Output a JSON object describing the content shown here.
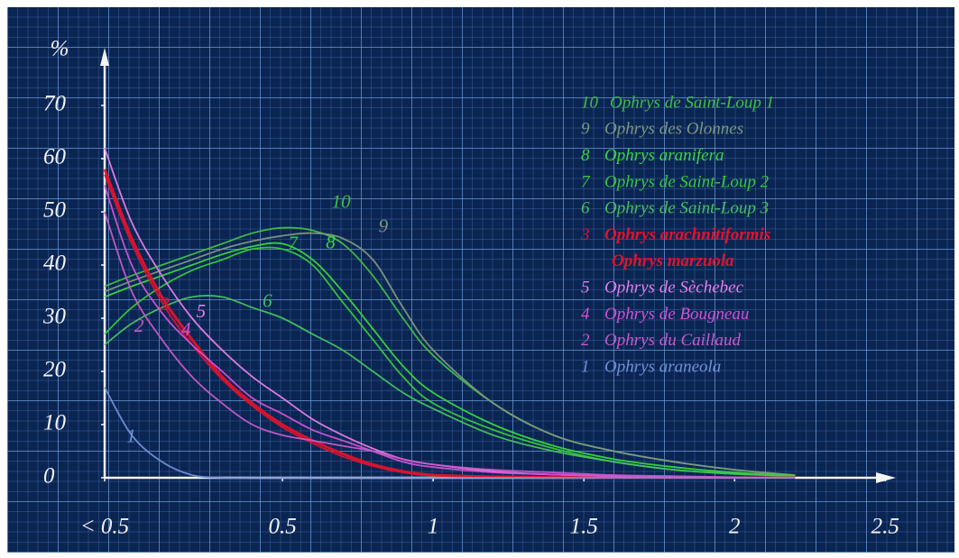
{
  "chart_data": {
    "type": "line",
    "y_label": "%",
    "x": [
      -0.09,
      0,
      0.1,
      0.2,
      0.3,
      0.4,
      0.5,
      0.6,
      0.7,
      0.8,
      0.9,
      1.0,
      1.2,
      1.4,
      1.6,
      1.8,
      2.0,
      2.2
    ],
    "xlim": [
      -0.09,
      2.55
    ],
    "xticks": [
      {
        "value": -0.09,
        "label": "< 0.5"
      },
      0.5,
      1,
      1.5,
      2,
      2.5
    ],
    "ylim": [
      0,
      80
    ],
    "yticks": [
      0,
      10,
      20,
      30,
      40,
      50,
      60,
      70
    ],
    "series": [
      {
        "label": "10",
        "name": "Ophrys de Saint-Loup 1",
        "color": "#3fbf46",
        "values": [
          36,
          38,
          40,
          42,
          44,
          46,
          47,
          46.5,
          44,
          38,
          30,
          23,
          14,
          8,
          5,
          3,
          1.5,
          0.5
        ]
      },
      {
        "label": "9",
        "name": "Ophrys des Olonnes",
        "color": "#7f967f",
        "values": [
          35,
          37,
          39,
          41,
          43,
          44.5,
          45.5,
          46,
          45,
          41,
          32,
          24,
          14,
          8,
          5,
          3,
          1.5,
          0.5
        ]
      },
      {
        "label": "8",
        "name": "Ophrys aranifera",
        "color": "#39d83c",
        "values": [
          34,
          36,
          38,
          40,
          42,
          43.5,
          44,
          41,
          35,
          28,
          21,
          16,
          10,
          6,
          3.5,
          2,
          1,
          0.4
        ]
      },
      {
        "label": "7",
        "name": "Ophrys de Saint-Loup 2",
        "color": "#36c93a",
        "values": [
          27,
          32,
          36,
          39,
          41,
          43,
          43,
          40,
          33,
          26,
          19,
          14,
          9,
          5.5,
          3,
          1.5,
          0.7,
          0.3
        ]
      },
      {
        "label": "6",
        "name": "Ophrys de Saint-Loup 3",
        "color": "#44c25c",
        "values": [
          25,
          29,
          32,
          34,
          34,
          32,
          30,
          27,
          24,
          20,
          16,
          13,
          8,
          5,
          3,
          1.5,
          0.8,
          0.3
        ]
      },
      {
        "label": "3",
        "name": "Ophrys arachnitiformis",
        "color": "#e2122c",
        "values": [
          58,
          45,
          34,
          26,
          19,
          14,
          10,
          7,
          4.5,
          2.5,
          1.2,
          0.5,
          0.2,
          0.1,
          0,
          0,
          0,
          0
        ]
      },
      {
        "name": "Ophrys marzuola",
        "color": "#e2122c",
        "values": [
          57,
          44,
          33,
          25,
          18.5,
          13.5,
          9.5,
          6.5,
          4,
          2.2,
          1,
          0.4,
          0.2,
          0.1,
          0,
          0,
          0,
          0
        ]
      },
      {
        "label": "5",
        "name": "Ophrys de Sèchebec",
        "color": "#e67ee6",
        "values": [
          62,
          48,
          38,
          30,
          24,
          19,
          15,
          11,
          8,
          5.5,
          3.5,
          2.5,
          1.2,
          0.6,
          0.3,
          0.1,
          0,
          0
        ]
      },
      {
        "label": "4",
        "name": "Ophrys de Bougneau",
        "color": "#d451d4",
        "values": [
          55,
          40,
          31,
          25,
          20,
          15,
          12,
          9,
          7,
          5,
          3,
          2,
          1,
          0.6,
          0.3,
          0.1,
          0,
          0
        ]
      },
      {
        "label": "2",
        "name": "Ophrys du Caillaud",
        "color": "#c958c9",
        "values": [
          50,
          35,
          26,
          19,
          14,
          10,
          8,
          7,
          6,
          5,
          3.5,
          2.5,
          1.5,
          1,
          0.5,
          0.3,
          0.1,
          0
        ]
      },
      {
        "label": "1",
        "name": "Ophrys araneola",
        "color": "#7290d8",
        "values": [
          17,
          8,
          3,
          0.5,
          0,
          0,
          0,
          0,
          0,
          0,
          0,
          0,
          0,
          0,
          0,
          0,
          0,
          0
        ]
      }
    ]
  }
}
